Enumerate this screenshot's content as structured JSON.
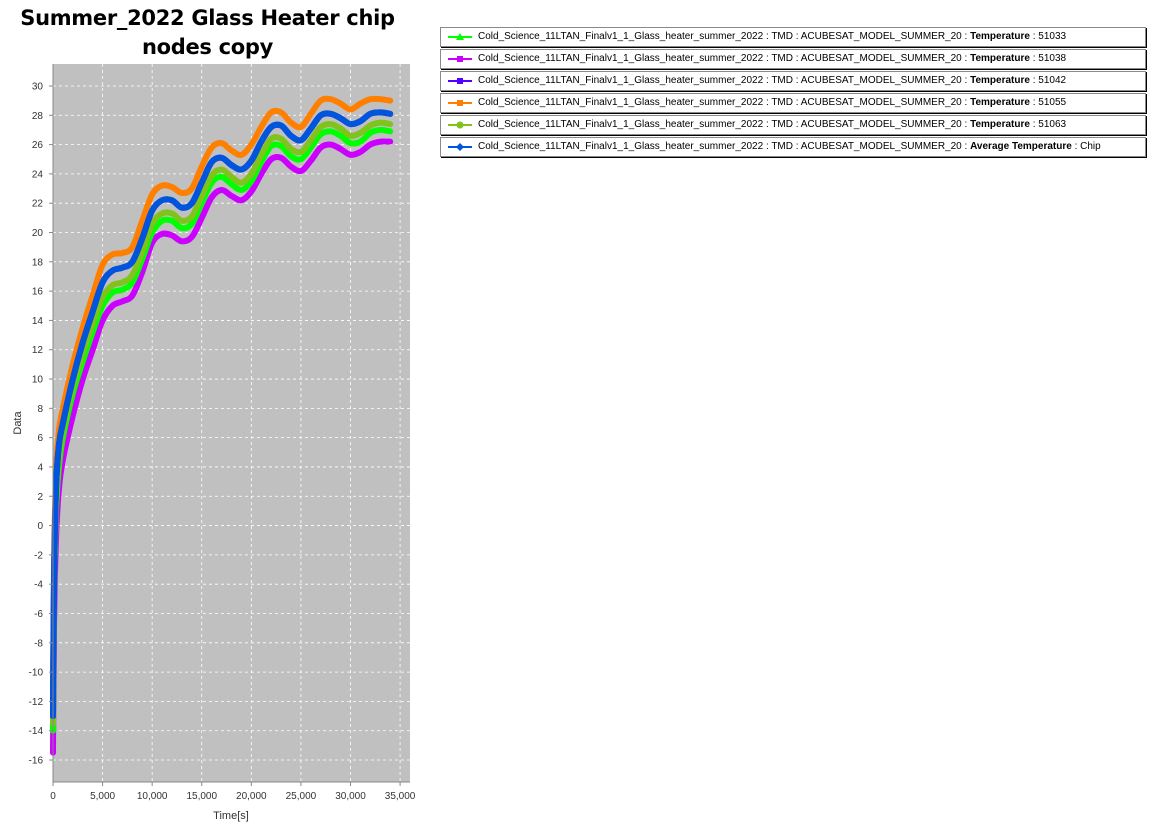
{
  "chart_data": {
    "type": "line",
    "title": "Summer_2022 Glass Heater chip nodes copy",
    "xlabel": "Time[s]",
    "ylabel": "Data",
    "xlim": [
      0,
      36000
    ],
    "ylim": [
      -17.5,
      31.5
    ],
    "x_ticks": [
      "0",
      "5,000",
      "10,000",
      "15,000",
      "20,000",
      "25,000",
      "30,000",
      "35,000"
    ],
    "x_tick_values": [
      0,
      5000,
      10000,
      15000,
      20000,
      25000,
      30000,
      35000
    ],
    "y_ticks": [
      "-16",
      "-14",
      "-12",
      "-10",
      "-8",
      "-6",
      "-4",
      "-2",
      "0",
      "2",
      "4",
      "6",
      "8",
      "10",
      "12",
      "14",
      "16",
      "18",
      "20",
      "22",
      "24",
      "26",
      "28",
      "30"
    ],
    "y_tick_values": [
      -16,
      -14,
      -12,
      -10,
      -8,
      -6,
      -4,
      -2,
      0,
      2,
      4,
      6,
      8,
      10,
      12,
      14,
      16,
      18,
      20,
      22,
      24,
      26,
      28,
      30
    ],
    "grid": true,
    "legend_position": "right",
    "plot_background": "#c0c0c0",
    "series": [
      {
        "legend_prefix": "Cold_Science_11LTAN_Finalv1_1_Glass_heater_summer_2022 : TMD : ACUBESAT_MODEL_SUMMER_20 : ",
        "legend_quantity": "Temperature",
        "legend_suffix": " : 51033",
        "color": "#00ff00",
        "marker": "triangle",
        "x": [
          0,
          100,
          300,
          600,
          1000,
          2000,
          3000,
          4000,
          5000,
          6000,
          7000,
          8000,
          9000,
          10000,
          11000,
          12000,
          13000,
          14000,
          15000,
          16000,
          17000,
          18000,
          19000,
          20000,
          21000,
          22000,
          23000,
          24000,
          25000,
          26000,
          27000,
          28000,
          29000,
          30000,
          31000,
          32000,
          33000,
          34000
        ],
        "y": [
          -14,
          -5,
          1,
          4,
          6,
          9,
          11.2,
          13.2,
          15,
          15.9,
          16.1,
          16.6,
          18.2,
          20,
          20.8,
          20.8,
          20.3,
          20.6,
          22,
          23.4,
          23.8,
          23.3,
          22.9,
          23.5,
          24.8,
          25.9,
          25.9,
          25.2,
          25,
          25.8,
          26.7,
          26.9,
          26.6,
          26.1,
          26.2,
          26.8,
          27,
          26.9
        ]
      },
      {
        "legend_prefix": "Cold_Science_11LTAN_Finalv1_1_Glass_heater_summer_2022 : TMD : ACUBESAT_MODEL_SUMMER_20 : ",
        "legend_quantity": "Temperature",
        "legend_suffix": " : 51038",
        "color": "#cc00ff",
        "marker": "square",
        "x": [
          0,
          100,
          300,
          600,
          1000,
          2000,
          3000,
          4000,
          5000,
          6000,
          7000,
          8000,
          9000,
          10000,
          11000,
          12000,
          13000,
          14000,
          15000,
          16000,
          17000,
          18000,
          19000,
          20000,
          21000,
          22000,
          23000,
          24000,
          25000,
          26000,
          27000,
          28000,
          29000,
          30000,
          31000,
          32000,
          33000,
          34000
        ],
        "y": [
          -15.5,
          -7,
          -1,
          2.5,
          4.5,
          7.5,
          10,
          12,
          14,
          15,
          15.3,
          15.7,
          17.3,
          19.3,
          19.9,
          19.8,
          19.4,
          19.7,
          21,
          22.4,
          22.9,
          22.5,
          22.2,
          22.8,
          24,
          25,
          25.1,
          24.5,
          24.2,
          24.9,
          25.8,
          26,
          25.7,
          25.3,
          25.5,
          26,
          26.2,
          26.2
        ]
      },
      {
        "legend_prefix": "Cold_Science_11LTAN_Finalv1_1_Glass_heater_summer_2022 : TMD : ACUBESAT_MODEL_SUMMER_20 : ",
        "legend_quantity": "Temperature",
        "legend_suffix": " : 51042",
        "color": "#5500ff",
        "marker": "square",
        "x": [
          0,
          100,
          300,
          600,
          1000,
          2000,
          3000,
          4000,
          5000,
          6000,
          7000,
          8000,
          9000,
          10000,
          11000,
          12000,
          13000,
          14000,
          15000,
          16000,
          17000,
          18000,
          19000,
          20000,
          21000,
          22000,
          23000,
          24000,
          25000,
          26000,
          27000,
          28000,
          29000,
          30000,
          31000,
          32000,
          33000,
          34000
        ],
        "y": [
          -13,
          -4,
          2.5,
          5.5,
          7,
          10,
          12.5,
          14.6,
          16.6,
          17.4,
          17.6,
          18,
          19.6,
          21.5,
          22.2,
          22.2,
          21.7,
          22,
          23.4,
          24.8,
          25.1,
          24.6,
          24.3,
          24.9,
          26.2,
          27.2,
          27.3,
          26.6,
          26.3,
          27.1,
          28,
          28.1,
          27.8,
          27.4,
          27.6,
          28.1,
          28.2,
          28.1
        ]
      },
      {
        "legend_prefix": "Cold_Science_11LTAN_Finalv1_1_Glass_heater_summer_2022 : TMD : ACUBESAT_MODEL_SUMMER_20 : ",
        "legend_quantity": "Temperature",
        "legend_suffix": " : 51055",
        "color": "#ff7f00",
        "marker": "square",
        "x": [
          0,
          100,
          300,
          600,
          1000,
          2000,
          3000,
          4000,
          5000,
          6000,
          7000,
          8000,
          9000,
          10000,
          11000,
          12000,
          13000,
          14000,
          15000,
          16000,
          17000,
          18000,
          19000,
          20000,
          21000,
          22000,
          23000,
          24000,
          25000,
          26000,
          27000,
          28000,
          29000,
          30000,
          31000,
          32000,
          33000,
          34000
        ],
        "y": [
          -12,
          -3,
          3.5,
          6.5,
          8,
          11,
          13.5,
          15.7,
          17.8,
          18.5,
          18.6,
          19,
          20.8,
          22.6,
          23.2,
          23.1,
          22.7,
          23,
          24.5,
          25.8,
          26.1,
          25.6,
          25.3,
          26,
          27.2,
          28.2,
          28.2,
          27.5,
          27.2,
          28.1,
          29,
          29.1,
          28.8,
          28.4,
          28.8,
          29.1,
          29.1,
          29
        ]
      },
      {
        "legend_prefix": "Cold_Science_11LTAN_Finalv1_1_Glass_heater_summer_2022 : TMD : ACUBESAT_MODEL_SUMMER_20 : ",
        "legend_quantity": "Temperature",
        "legend_suffix": " : 51063",
        "color": "#7fc31c",
        "marker": "circle",
        "x": [
          0,
          100,
          300,
          600,
          1000,
          2000,
          3000,
          4000,
          5000,
          6000,
          7000,
          8000,
          9000,
          10000,
          11000,
          12000,
          13000,
          14000,
          15000,
          16000,
          17000,
          18000,
          19000,
          20000,
          21000,
          22000,
          23000,
          24000,
          25000,
          26000,
          27000,
          28000,
          29000,
          30000,
          31000,
          32000,
          33000,
          34000
        ],
        "y": [
          -13.5,
          -4.5,
          1.5,
          4.5,
          6.5,
          9.5,
          11.8,
          13.8,
          15.6,
          16.4,
          16.6,
          17.1,
          18.7,
          20.6,
          21.3,
          21.3,
          20.8,
          21.1,
          22.5,
          23.9,
          24.3,
          23.8,
          23.4,
          24,
          25.3,
          26.4,
          26.4,
          25.7,
          25.5,
          26.3,
          27.2,
          27.4,
          27.1,
          26.6,
          26.8,
          27.3,
          27.5,
          27.4
        ]
      },
      {
        "legend_prefix": "Cold_Science_11LTAN_Finalv1_1_Glass_heater_summer_2022 : TMD : ACUBESAT_MODEL_SUMMER_20 : ",
        "legend_quantity": "Average Temperature",
        "legend_suffix": " : Chip",
        "color": "#0055dd",
        "marker": "diamond",
        "x": [
          0,
          100,
          300,
          600,
          1000,
          2000,
          3000,
          4000,
          5000,
          6000,
          7000,
          8000,
          9000,
          10000,
          11000,
          12000,
          13000,
          14000,
          15000,
          16000,
          17000,
          18000,
          19000,
          20000,
          21000,
          22000,
          23000,
          24000,
          25000,
          26000,
          27000,
          28000,
          29000,
          30000,
          31000,
          32000,
          33000,
          34000
        ],
        "y": [
          -13,
          -4,
          2.5,
          5.5,
          7,
          10,
          12.5,
          14.6,
          16.6,
          17.4,
          17.6,
          18,
          19.6,
          21.5,
          22.2,
          22.2,
          21.7,
          22,
          23.4,
          24.8,
          25.1,
          24.6,
          24.3,
          24.9,
          26.2,
          27.2,
          27.3,
          26.6,
          26.3,
          27.1,
          28,
          28.1,
          27.8,
          27.4,
          27.6,
          28.1,
          28.2,
          28.1
        ]
      }
    ]
  }
}
